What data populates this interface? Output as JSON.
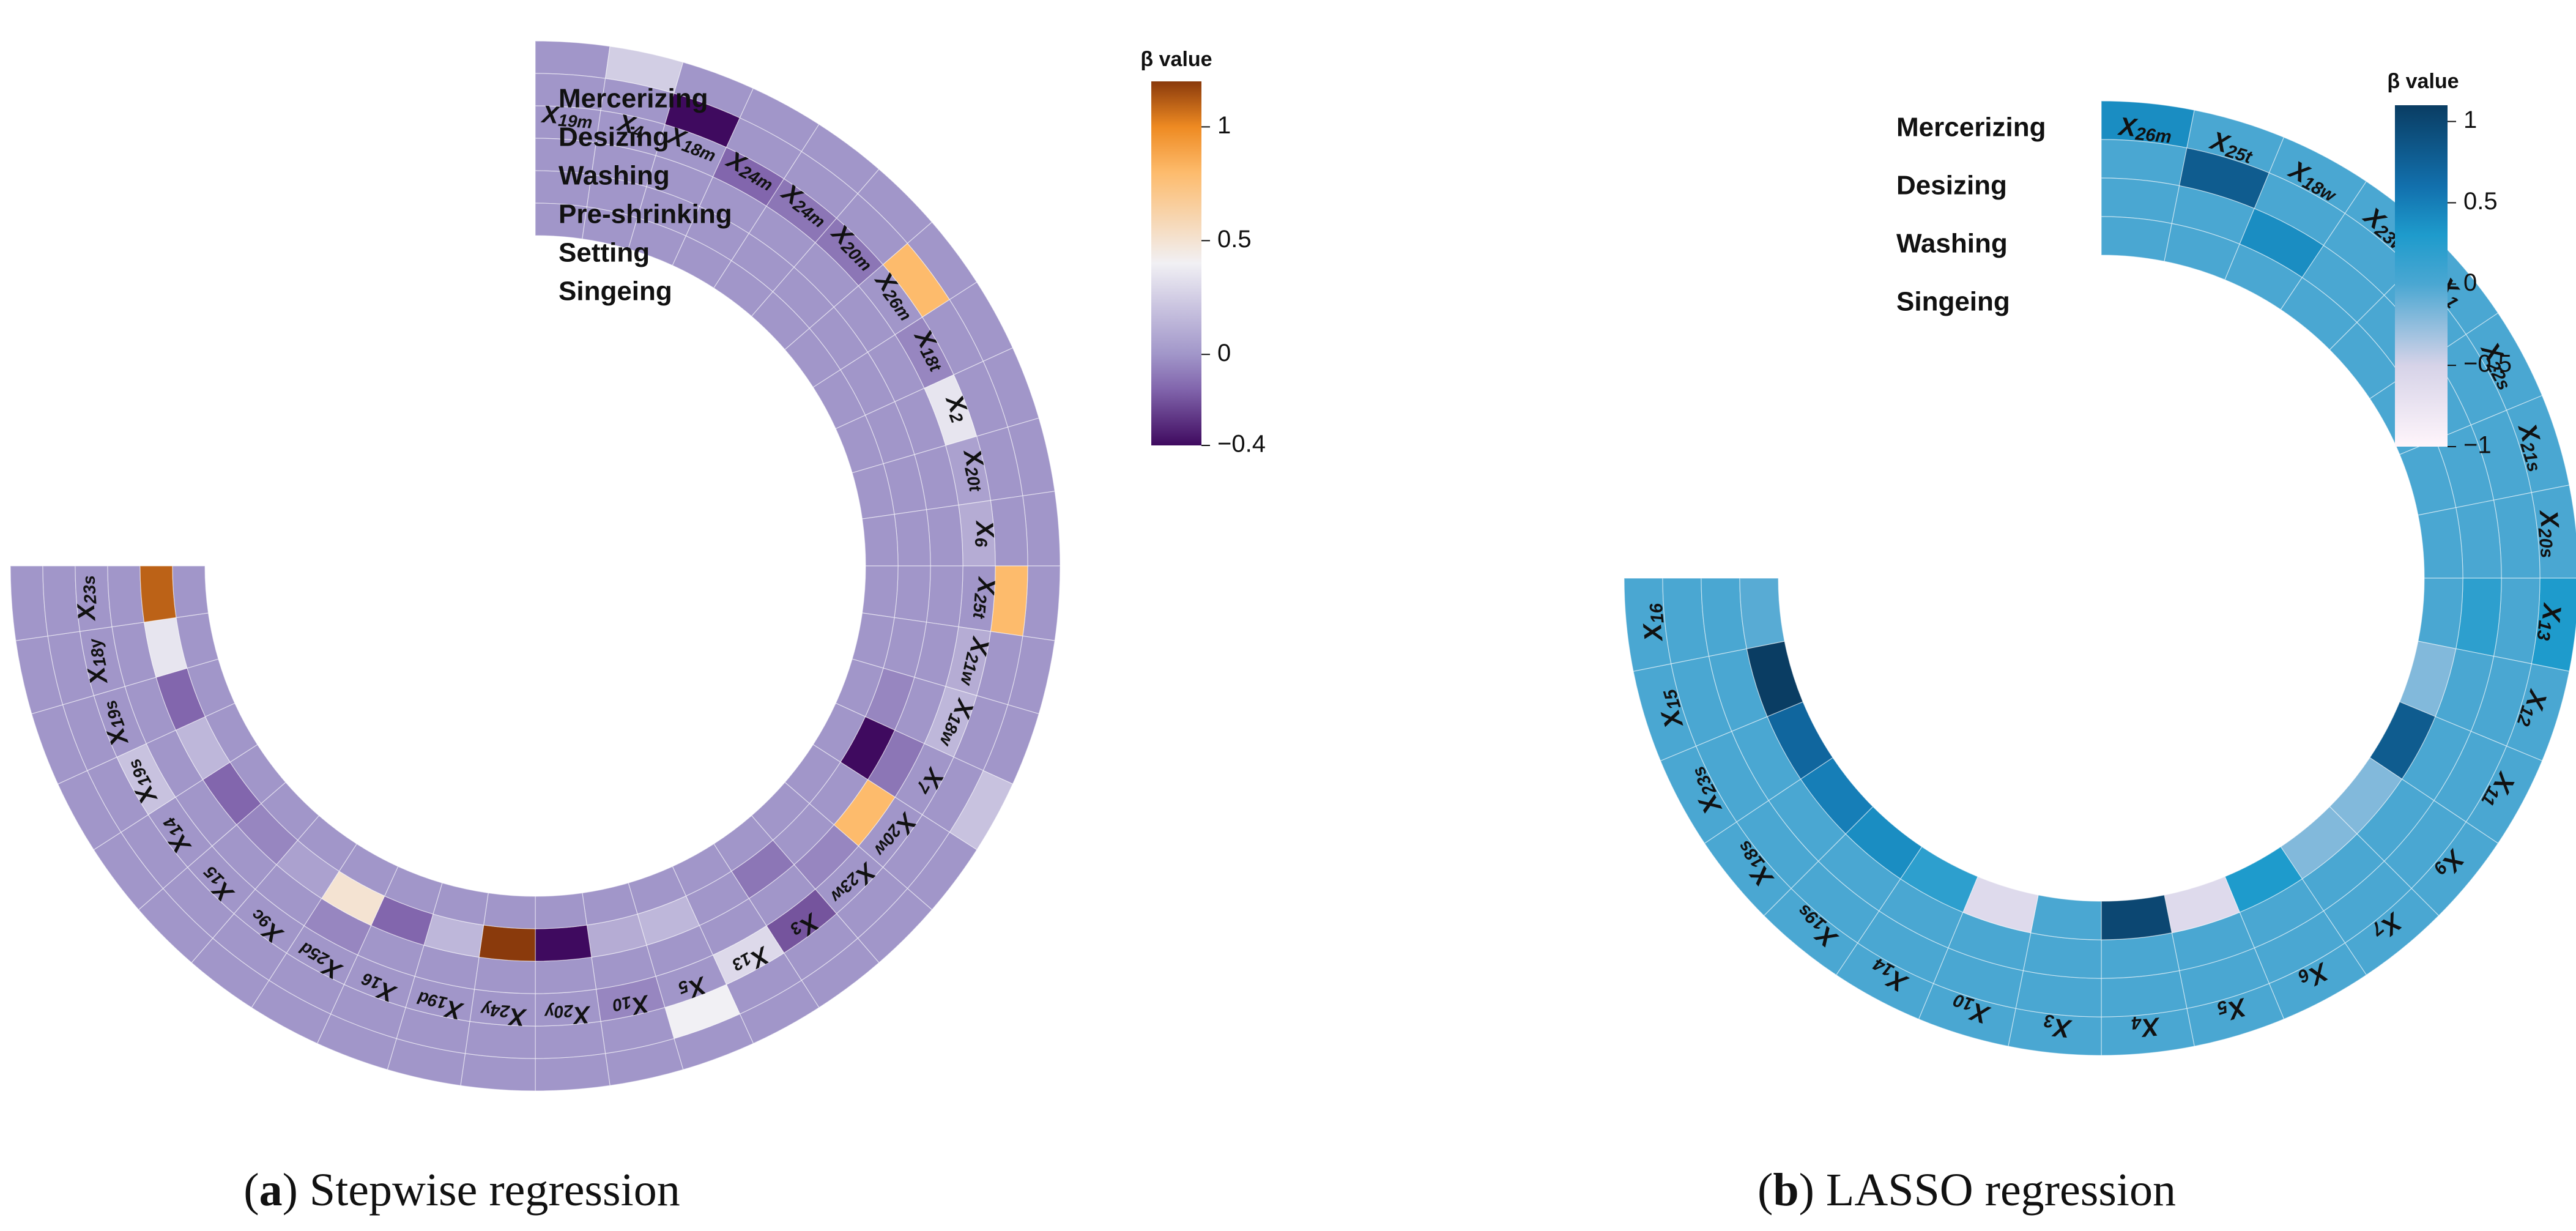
{
  "charts": [
    {
      "caption_letter": "a",
      "caption_text": "Stepwise regression",
      "colorbar": {
        "title": "β value",
        "ticks": [
          {
            "v": 1,
            "t": "1"
          },
          {
            "v": 0.5,
            "t": "0.5"
          },
          {
            "v": 0,
            "t": "0"
          },
          {
            "v": -0.4,
            "t": "−0.4"
          }
        ]
      },
      "ring_labels": [
        "Mercerizing",
        "Desizing",
        "Washing",
        "Pre-shrinking",
        "Setting",
        "Singeing"
      ]
    },
    {
      "caption_letter": "b",
      "caption_text": "LASSO regression",
      "colorbar": {
        "title": "β value",
        "ticks": [
          {
            "v": 1,
            "t": "1"
          },
          {
            "v": 0.5,
            "t": "0.5"
          },
          {
            "v": 0,
            "t": "0"
          },
          {
            "v": -0.5,
            "t": "−0.5"
          },
          {
            "v": -1,
            "t": "−1"
          }
        ]
      },
      "ring_labels": [
        "Mercerizing",
        "Desizing",
        "Washing",
        "Singeing"
      ]
    }
  ],
  "chart_data": [
    {
      "type": "heatmap",
      "layout": "circular",
      "colormap": "PuOr (purple-orange)",
      "value_range": [
        -0.4,
        1.2
      ],
      "rings": [
        "Mercerizing",
        "Desizing",
        "Washing",
        "Pre-shrinking",
        "Setting",
        "Singeing"
      ],
      "segments": [
        "X19m",
        "X4",
        "X18m",
        "X24m",
        "X24m",
        "X20m",
        "X26m",
        "X18t",
        "X2",
        "X20t",
        "X6",
        "X25t",
        "X21w",
        "X18w",
        "X7",
        "X20w",
        "X23w",
        "X3",
        "X13",
        "X5",
        "X10",
        "X20y",
        "X24y",
        "X19d",
        "X16",
        "X25d",
        "X9c",
        "X15",
        "X14",
        "X19s",
        "X19s",
        "X18y",
        "X23s"
      ],
      "segments_display": [
        {
          "b": "X",
          "s": "19m"
        },
        {
          "b": "X",
          "s": "4"
        },
        {
          "b": "X",
          "s": "18m"
        },
        {
          "b": "X",
          "s": "24m"
        },
        {
          "b": "X",
          "s": "24m"
        },
        {
          "b": "X",
          "s": "20m"
        },
        {
          "b": "X",
          "s": "26m"
        },
        {
          "b": "X",
          "s": "18t"
        },
        {
          "b": "X",
          "s": "2"
        },
        {
          "b": "X",
          "s": "20t"
        },
        {
          "b": "X",
          "s": "6"
        },
        {
          "b": "X",
          "s": "25t"
        },
        {
          "b": "X",
          "s": "21w"
        },
        {
          "b": "X",
          "s": "18w"
        },
        {
          "b": "X",
          "s": "7"
        },
        {
          "b": "X",
          "s": "20w"
        },
        {
          "b": "X",
          "s": "23w"
        },
        {
          "b": "X",
          "s": "3"
        },
        {
          "b": "X",
          "s": "13"
        },
        {
          "b": "X",
          "s": "5"
        },
        {
          "b": "X",
          "s": "10"
        },
        {
          "b": "X",
          "s": "20y"
        },
        {
          "b": "X",
          "s": "24y"
        },
        {
          "b": "X",
          "s": "19d"
        },
        {
          "b": "X",
          "s": "16"
        },
        {
          "b": "X",
          "s": "25d"
        },
        {
          "b": "X",
          "s": "9c"
        },
        {
          "b": "X",
          "s": "15"
        },
        {
          "b": "X",
          "s": "14"
        },
        {
          "b": "X",
          "s": "19s"
        },
        {
          "b": "X",
          "s": "19s"
        },
        {
          "b": "X",
          "s": "18y"
        },
        {
          "b": "X",
          "s": "23s"
        }
      ],
      "values": [
        [
          0,
          0.25,
          0,
          0,
          0,
          0,
          0,
          0,
          0,
          0,
          0,
          0,
          0,
          0,
          0.2,
          0,
          0,
          0,
          0,
          0,
          0,
          0,
          0,
          0,
          0,
          0,
          0,
          0,
          0,
          0,
          0,
          0,
          0
        ],
        [
          0,
          0,
          -0.4,
          0,
          0,
          0,
          0.8,
          0,
          0,
          0,
          0,
          0.8,
          0,
          0,
          0,
          0,
          0,
          0,
          0,
          0.4,
          0,
          0,
          0,
          0,
          0,
          0,
          0,
          0,
          0,
          0,
          0,
          0,
          0
        ],
        [
          0,
          0,
          0,
          -0.15,
          -0.1,
          -0.1,
          0,
          -0.05,
          0.35,
          0.05,
          0.1,
          0,
          0.1,
          0.15,
          0,
          0,
          0,
          -0.2,
          0.3,
          0,
          -0.05,
          0,
          0,
          0,
          0,
          0,
          0,
          0,
          0,
          0.2,
          0,
          0,
          0
        ],
        [
          0,
          0,
          0,
          0,
          0,
          0,
          0,
          0,
          0,
          0,
          0,
          0,
          0,
          0,
          -0.1,
          0.8,
          -0.05,
          0,
          0,
          0,
          0,
          0,
          0,
          0,
          0,
          -0.05,
          0,
          0,
          0,
          0,
          0,
          0,
          0
        ],
        [
          0,
          0,
          0,
          0,
          0,
          0,
          0,
          0,
          0,
          0,
          0,
          0,
          0,
          -0.05,
          -0.4,
          0,
          0,
          -0.1,
          0,
          0.15,
          0.1,
          -0.4,
          1.2,
          0.15,
          -0.15,
          0.5,
          0.05,
          -0.05,
          -0.15,
          0.15,
          -0.15,
          0.35,
          1.1
        ],
        [
          0,
          0,
          0,
          0,
          0,
          0,
          0,
          0,
          0,
          0,
          0,
          0,
          0,
          0,
          0,
          0,
          0,
          0,
          0,
          0,
          0,
          0,
          0,
          0,
          0,
          0,
          0,
          0,
          0,
          0,
          0,
          0,
          0
        ]
      ]
    },
    {
      "type": "heatmap",
      "layout": "circular",
      "colormap": "PuBu (white to dark blue)",
      "value_range": [
        -1,
        1.1
      ],
      "rings": [
        "Mercerizing",
        "Desizing",
        "Washing",
        "Singeing"
      ],
      "segments": [
        "X26m",
        "X25t",
        "X18w",
        "X23w",
        "X1",
        "X22s",
        "X21s",
        "X20s",
        "X13",
        "X12",
        "X11",
        "X9",
        "X7",
        "X6",
        "X5",
        "X4",
        "X3",
        "X10",
        "X14",
        "X19s",
        "X18s",
        "X23s",
        "X15",
        "X16"
      ],
      "segments_display": [
        {
          "b": "X",
          "s": "26m"
        },
        {
          "b": "X",
          "s": "25t"
        },
        {
          "b": "X",
          "s": "18w"
        },
        {
          "b": "X",
          "s": "23w"
        },
        {
          "b": "X",
          "s": "1"
        },
        {
          "b": "X",
          "s": "22s"
        },
        {
          "b": "X",
          "s": "21s"
        },
        {
          "b": "X",
          "s": "20s"
        },
        {
          "b": "X",
          "s": "13"
        },
        {
          "b": "X",
          "s": "12"
        },
        {
          "b": "X",
          "s": "11"
        },
        {
          "b": "X",
          "s": "9"
        },
        {
          "b": "X",
          "s": "7"
        },
        {
          "b": "X",
          "s": "6"
        },
        {
          "b": "X",
          "s": "5"
        },
        {
          "b": "X",
          "s": "4"
        },
        {
          "b": "X",
          "s": "3"
        },
        {
          "b": "X",
          "s": "10"
        },
        {
          "b": "X",
          "s": "14"
        },
        {
          "b": "X",
          "s": "19s"
        },
        {
          "b": "X",
          "s": "18s"
        },
        {
          "b": "X",
          "s": "23s"
        },
        {
          "b": "X",
          "s": "15"
        },
        {
          "b": "X",
          "s": "16"
        }
      ],
      "values": [
        [
          0.4,
          0,
          0,
          0,
          0,
          0,
          0,
          0,
          0.3,
          0,
          0,
          0,
          0,
          0,
          0,
          0,
          0,
          0,
          0,
          0,
          0,
          0,
          0,
          0
        ],
        [
          0,
          0.8,
          0,
          0,
          0,
          0,
          0,
          0,
          0,
          0,
          0,
          0,
          0,
          0,
          0,
          0,
          0,
          0,
          0,
          0,
          0,
          0,
          0,
          0
        ],
        [
          0,
          0,
          0.4,
          0,
          0,
          0,
          0,
          0,
          0.2,
          0,
          0,
          0,
          0,
          0,
          0,
          0,
          0,
          0,
          0,
          0,
          0,
          0,
          0,
          0
        ],
        [
          0,
          0,
          0,
          0,
          0,
          0,
          0,
          0,
          0,
          -0.2,
          0.8,
          -0.2,
          -0.2,
          0.3,
          -0.6,
          1.0,
          0,
          -0.6,
          0.2,
          0.4,
          0.5,
          0.7,
          1.1,
          -0.05
        ]
      ]
    }
  ]
}
